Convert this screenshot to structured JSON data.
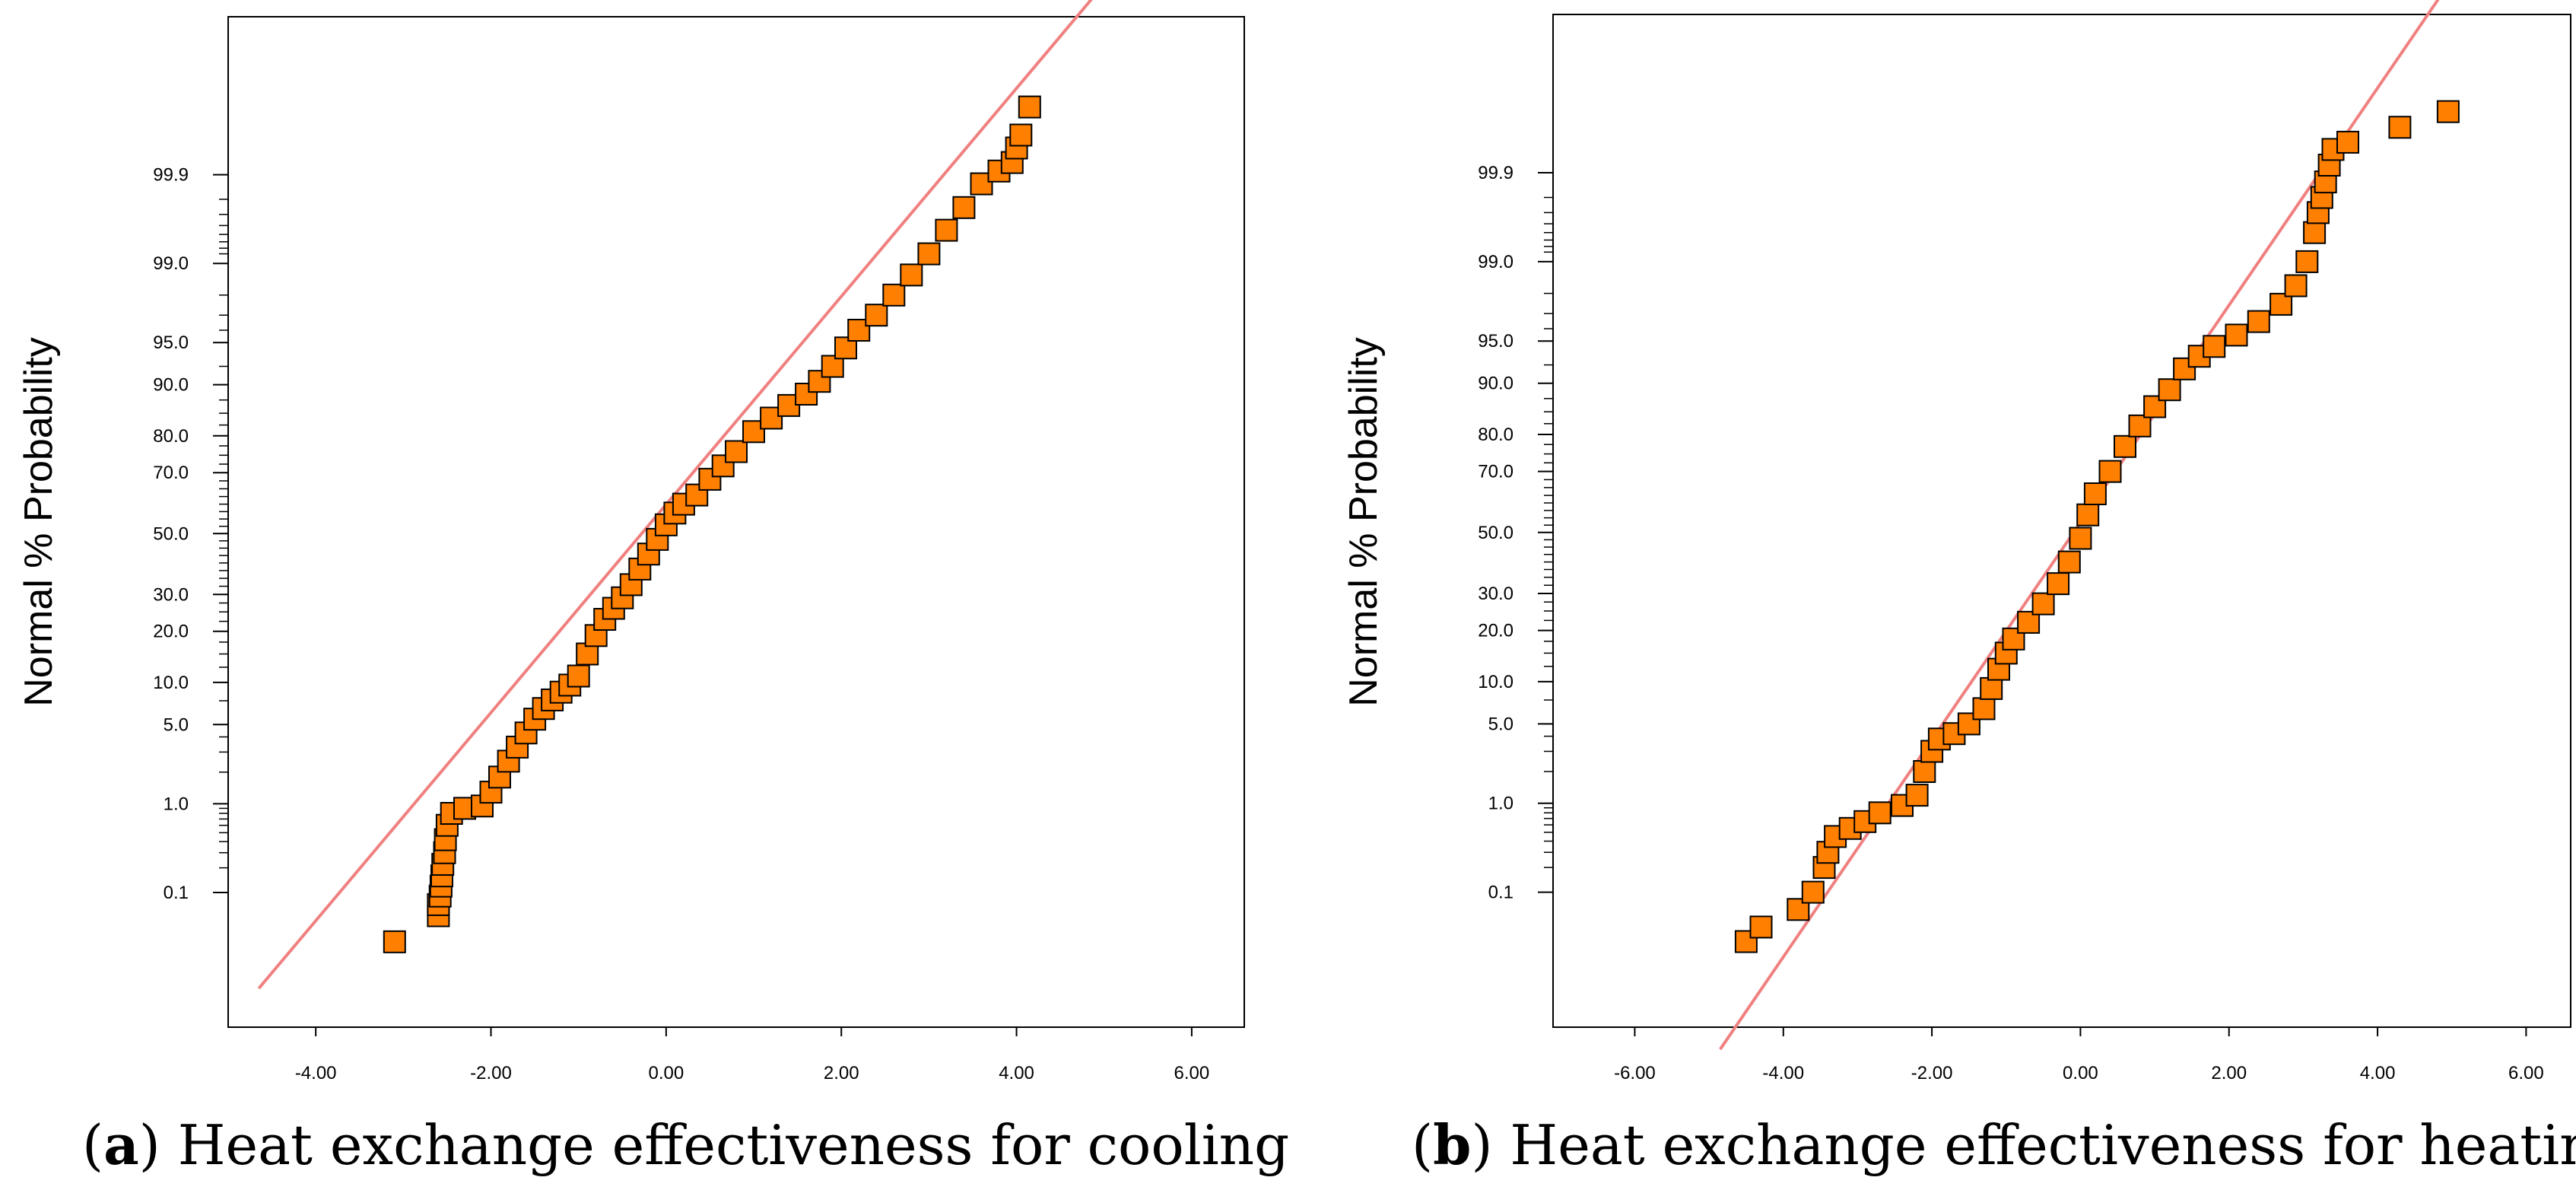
{
  "colors": {
    "marker_fill": "#ff8000",
    "marker_stroke": "#000000",
    "reference_line": "#f08080",
    "frame": "#000000"
  },
  "chart_data": [
    {
      "type": "scatter",
      "kind": "normal-probability-plot",
      "caption_letter": "a",
      "caption_text": "Heat exchange effectiveness for cooling",
      "ylabel": "Normal % Probability",
      "xlabel": "",
      "xlim": [
        -5.0,
        6.6
      ],
      "x_ticks": [
        "-4.00",
        "-2.00",
        "0.00",
        "2.00",
        "4.00",
        "6.00"
      ],
      "y_ticks": [
        "0.1",
        "1.0",
        "5.0",
        "10.0",
        "20.0",
        "30.0",
        "50.0",
        "70.0",
        "80.0",
        "90.0",
        "95.0",
        "99.0",
        "99.9"
      ],
      "reference_line": {
        "from": [
          -4.65,
          0.0045
        ],
        "to": [
          4.95,
          99.99986
        ]
      },
      "points": [
        [
          -3.1,
          0.022
        ],
        [
          -2.6,
          0.05
        ],
        [
          -2.6,
          0.07
        ],
        [
          -2.58,
          0.09
        ],
        [
          -2.57,
          0.12
        ],
        [
          -2.56,
          0.16
        ],
        [
          -2.55,
          0.22
        ],
        [
          -2.53,
          0.3
        ],
        [
          -2.52,
          0.42
        ],
        [
          -2.5,
          0.6
        ],
        [
          -2.45,
          0.8
        ],
        [
          -2.3,
          0.9
        ],
        [
          -2.1,
          0.95
        ],
        [
          -2.0,
          1.3
        ],
        [
          -1.9,
          1.8
        ],
        [
          -1.8,
          2.5
        ],
        [
          -1.7,
          3.3
        ],
        [
          -1.6,
          4.3
        ],
        [
          -1.5,
          5.5
        ],
        [
          -1.4,
          6.6
        ],
        [
          -1.3,
          7.6
        ],
        [
          -1.2,
          8.6
        ],
        [
          -1.1,
          9.6
        ],
        [
          -1.0,
          11.0
        ],
        [
          -0.9,
          15.0
        ],
        [
          -0.8,
          19.0
        ],
        [
          -0.7,
          23.0
        ],
        [
          -0.6,
          26.0
        ],
        [
          -0.5,
          29.0
        ],
        [
          -0.4,
          33.0
        ],
        [
          -0.3,
          38.0
        ],
        [
          -0.2,
          43.0
        ],
        [
          -0.1,
          48.0
        ],
        [
          0.0,
          53.0
        ],
        [
          0.1,
          57.0
        ],
        [
          0.2,
          60.0
        ],
        [
          0.35,
          63.0
        ],
        [
          0.5,
          68.0
        ],
        [
          0.65,
          72.0
        ],
        [
          0.8,
          76.0
        ],
        [
          1.0,
          81.0
        ],
        [
          1.2,
          84.0
        ],
        [
          1.4,
          86.5
        ],
        [
          1.6,
          88.5
        ],
        [
          1.75,
          90.5
        ],
        [
          1.9,
          92.5
        ],
        [
          2.05,
          94.5
        ],
        [
          2.2,
          96.0
        ],
        [
          2.4,
          97.0
        ],
        [
          2.6,
          98.0
        ],
        [
          2.8,
          98.7
        ],
        [
          3.0,
          99.2
        ],
        [
          3.2,
          99.55
        ],
        [
          3.4,
          99.75
        ],
        [
          3.6,
          99.87
        ],
        [
          3.8,
          99.91
        ],
        [
          3.95,
          99.93
        ],
        [
          4.0,
          99.955
        ],
        [
          4.05,
          99.97
        ],
        [
          4.15,
          99.988
        ]
      ]
    },
    {
      "type": "scatter",
      "kind": "normal-probability-plot",
      "caption_letter": "b",
      "caption_text": "Heat exchange effectiveness for heating",
      "ylabel": "Normal % Probability",
      "xlabel": "",
      "xlim": [
        -7.1,
        6.6
      ],
      "x_ticks": [
        "-6.00",
        "-4.00",
        "-2.00",
        "0.00",
        "2.00",
        "4.00",
        "6.00"
      ],
      "y_ticks": [
        "0.1",
        "1.0",
        "5.0",
        "10.0",
        "20.0",
        "30.0",
        "50.0",
        "70.0",
        "80.0",
        "90.0",
        "95.0",
        "99.0",
        "99.9"
      ],
      "reference_line": {
        "from": [
          -4.85,
          0.00045
        ],
        "to": [
          4.9,
          99.99984
        ]
      },
      "points": [
        [
          -4.5,
          0.022
        ],
        [
          -4.3,
          0.035
        ],
        [
          -3.8,
          0.06
        ],
        [
          -3.6,
          0.1
        ],
        [
          -3.45,
          0.2
        ],
        [
          -3.4,
          0.3
        ],
        [
          -3.3,
          0.45
        ],
        [
          -3.1,
          0.55
        ],
        [
          -2.9,
          0.65
        ],
        [
          -2.7,
          0.8
        ],
        [
          -2.4,
          0.95
        ],
        [
          -2.2,
          1.2
        ],
        [
          -2.1,
          2.0
        ],
        [
          -2.0,
          3.0
        ],
        [
          -1.9,
          3.8
        ],
        [
          -1.7,
          4.2
        ],
        [
          -1.5,
          5.0
        ],
        [
          -1.3,
          6.5
        ],
        [
          -1.2,
          9.0
        ],
        [
          -1.1,
          12.0
        ],
        [
          -1.0,
          15.0
        ],
        [
          -0.9,
          18.0
        ],
        [
          -0.7,
          22.0
        ],
        [
          -0.5,
          27.0
        ],
        [
          -0.3,
          33.0
        ],
        [
          -0.15,
          40.0
        ],
        [
          0.0,
          48.0
        ],
        [
          0.1,
          56.0
        ],
        [
          0.2,
          63.0
        ],
        [
          0.4,
          70.0
        ],
        [
          0.6,
          77.0
        ],
        [
          0.8,
          82.0
        ],
        [
          1.0,
          86.0
        ],
        [
          1.2,
          89.0
        ],
        [
          1.4,
          92.0
        ],
        [
          1.6,
          93.5
        ],
        [
          1.8,
          94.5
        ],
        [
          2.1,
          95.5
        ],
        [
          2.4,
          96.5
        ],
        [
          2.7,
          97.5
        ],
        [
          2.9,
          98.3
        ],
        [
          3.05,
          99.0
        ],
        [
          3.15,
          99.5
        ],
        [
          3.2,
          99.7
        ],
        [
          3.25,
          99.8
        ],
        [
          3.3,
          99.87
        ],
        [
          3.35,
          99.92
        ],
        [
          3.4,
          99.95
        ],
        [
          3.6,
          99.96
        ],
        [
          4.3,
          99.975
        ],
        [
          4.95,
          99.985
        ]
      ]
    }
  ]
}
